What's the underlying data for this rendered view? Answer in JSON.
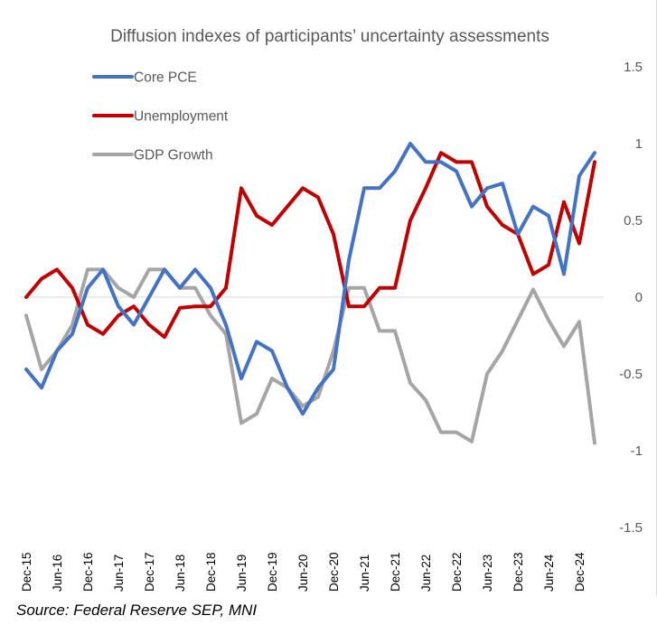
{
  "chart_data": {
    "type": "line",
    "title": "Diffusion indexes of participants’ uncertainty assessments",
    "ylim": [
      -1.5,
      1.5
    ],
    "yticks": [
      1.5,
      1,
      0.5,
      0,
      -0.5,
      -1,
      -1.5
    ],
    "ytick_labels": [
      "1.5",
      "1",
      "0.5",
      "0",
      "-0.5",
      "-1",
      "-1.5"
    ],
    "grid": false,
    "legend_placement": "top-left",
    "x_tick_labels": [
      "Dec-15",
      "Jun-16",
      "Dec-16",
      "Jun-17",
      "Dec-17",
      "Jun-18",
      "Dec-18",
      "Jun-19",
      "Dec-19",
      "Jun-20",
      "Dec-20",
      "Jun-21",
      "Dec-21",
      "Jun-22",
      "Dec-22",
      "Jun-23",
      "Dec-23",
      "Jun-24",
      "Dec-24"
    ],
    "series": [
      {
        "name": "Core PCE",
        "color": "#4472C4",
        "values": [
          -0.47,
          -0.59,
          -0.35,
          -0.24,
          0.06,
          0.18,
          -0.06,
          -0.18,
          0.0,
          0.18,
          0.06,
          0.18,
          0.06,
          -0.18,
          -0.53,
          -0.29,
          -0.35,
          -0.59,
          -0.76,
          -0.59,
          -0.47,
          0.24,
          0.71,
          0.71,
          0.82,
          1.0,
          0.88,
          0.88,
          0.82,
          0.59,
          0.71,
          0.74,
          0.41,
          0.59,
          0.53,
          0.15,
          0.79,
          0.94
        ]
      },
      {
        "name": "Unemployment",
        "color": "#C00000",
        "values": [
          0.0,
          0.12,
          0.18,
          0.06,
          -0.18,
          -0.24,
          -0.12,
          -0.06,
          -0.18,
          -0.26,
          -0.07,
          -0.06,
          -0.06,
          0.06,
          0.71,
          0.53,
          0.47,
          0.59,
          0.71,
          0.65,
          0.41,
          -0.06,
          -0.06,
          0.06,
          0.06,
          0.5,
          0.71,
          0.94,
          0.88,
          0.88,
          0.59,
          0.47,
          0.41,
          0.15,
          0.21,
          0.62,
          0.35,
          0.88
        ]
      },
      {
        "name": "GDP Growth",
        "color": "#A5A5A5",
        "values": [
          -0.12,
          -0.47,
          -0.35,
          -0.18,
          0.18,
          0.18,
          0.06,
          0.0,
          0.18,
          0.18,
          0.06,
          0.06,
          -0.12,
          -0.24,
          -0.82,
          -0.76,
          -0.53,
          -0.59,
          -0.71,
          -0.65,
          -0.35,
          0.06,
          0.06,
          -0.22,
          -0.22,
          -0.56,
          -0.67,
          -0.88,
          -0.88,
          -0.94,
          -0.5,
          -0.35,
          -0.15,
          0.05,
          -0.15,
          -0.32,
          -0.16,
          -0.95
        ]
      }
    ]
  },
  "source": "Source: Federal Reserve SEP, MNI"
}
